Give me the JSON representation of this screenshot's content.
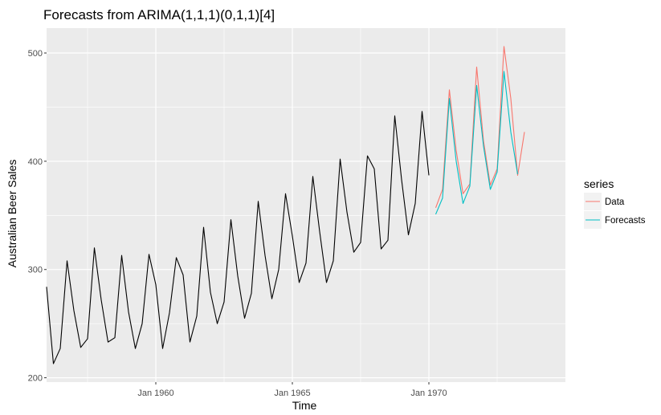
{
  "chart_data": {
    "type": "line",
    "title": "Forecasts from ARIMA(1,1,1)(0,1,1)[4]",
    "xlabel": "Time",
    "ylabel": "Australian Beer Sales",
    "xlim": [
      1956.0,
      1975.0
    ],
    "ylim": [
      196,
      523
    ],
    "x_ticks": [
      {
        "value": 1960,
        "label": "Jan 1960"
      },
      {
        "value": 1965,
        "label": "Jan 1965"
      },
      {
        "value": 1970,
        "label": "Jan 1970"
      }
    ],
    "y_ticks": [
      200,
      300,
      400,
      500
    ],
    "grid": true,
    "background": "#EBEBEB",
    "history": {
      "color": "#000000",
      "start": 1956.0,
      "step": 0.25,
      "values": [
        284,
        213,
        227,
        308,
        262,
        228,
        236,
        320,
        272,
        233,
        237,
        313,
        261,
        227,
        250,
        314,
        286,
        227,
        260,
        311,
        295,
        233,
        257,
        339,
        279,
        250,
        270,
        346,
        294,
        255,
        278,
        363,
        313,
        273,
        300,
        370,
        331,
        288,
        306,
        386,
        335,
        288,
        308,
        402,
        353,
        316,
        325,
        405,
        393,
        319,
        327,
        442,
        383,
        332,
        361,
        446,
        387
      ]
    },
    "legend": {
      "title": "series",
      "placement": "right"
    },
    "series": [
      {
        "name": "Data",
        "color": "#F8766D",
        "x": [
          1970.25,
          1970.5,
          1970.75,
          1971.0,
          1971.25,
          1971.5,
          1971.75,
          1972.0,
          1972.25,
          1972.5,
          1972.75,
          1973.0,
          1973.25,
          1973.5,
          1973.75
        ],
        "values": [
          357,
          374,
          466,
          410,
          370,
          379,
          487,
          419,
          378,
          393,
          506,
          458,
          387,
          427,
          null
        ]
      },
      {
        "name": "Forecasts",
        "color": "#00BFC4",
        "x": [
          1970.25,
          1970.5,
          1970.75,
          1971.0,
          1971.25,
          1971.5,
          1971.75,
          1972.0,
          1972.25,
          1972.5,
          1972.75,
          1973.0,
          1973.25
        ],
        "values": [
          351,
          366,
          458,
          400,
          361,
          377,
          470,
          414,
          374,
          390,
          483,
          427,
          388
        ]
      }
    ]
  }
}
